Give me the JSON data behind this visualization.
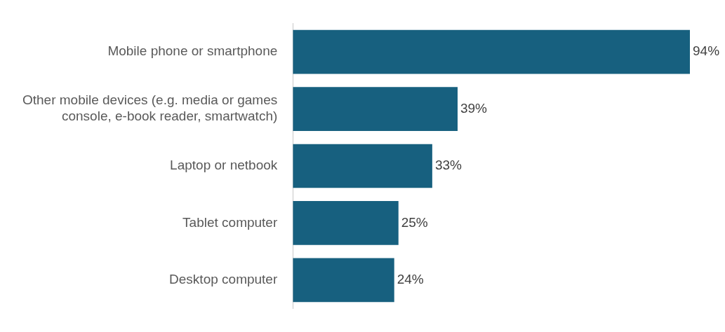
{
  "chart_data": {
    "type": "bar",
    "orientation": "horizontal",
    "categories": [
      "Mobile phone or smartphone",
      "Other mobile devices (e.g. media or games console, e-book reader, smartwatch)",
      "Laptop or netbook",
      "Tablet computer",
      "Desktop computer"
    ],
    "values": [
      94,
      39,
      33,
      25,
      24
    ],
    "value_labels": [
      "94%",
      "39%",
      "33%",
      "25%",
      "24%"
    ],
    "color": "#17607f"
  }
}
